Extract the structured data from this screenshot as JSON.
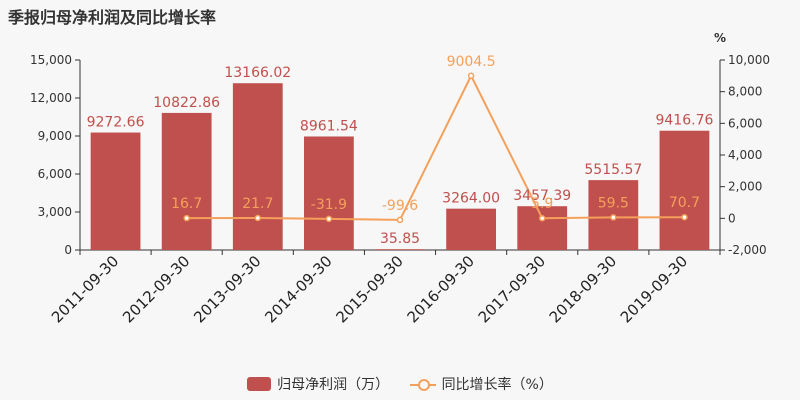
{
  "title": "季报归母净利润及同比增长率",
  "colors": {
    "bar": "#c0504d",
    "line": "#f5a05a",
    "axis": "#333333"
  },
  "legend": {
    "bar_label": "归母净利润（万）",
    "line_label": "同比增长率（%）"
  },
  "chart_data": {
    "type": "bar",
    "categories": [
      "2011-09-30",
      "2012-09-30",
      "2013-09-30",
      "2014-09-30",
      "2015-09-30",
      "2016-09-30",
      "2017-09-30",
      "2018-09-30",
      "2019-09-30"
    ],
    "series": [
      {
        "name": "归母净利润（万）",
        "type": "bar",
        "axis": "left",
        "values": [
          9272.66,
          10822.86,
          13166.02,
          8961.54,
          35.85,
          3264.0,
          3457.39,
          5515.57,
          9416.76
        ],
        "labels": [
          "9272.66",
          "10822.86",
          "13166.02",
          "8961.54",
          "35.85",
          "3264.00",
          "3457.39",
          "5515.57",
          "9416.76"
        ]
      },
      {
        "name": "同比增长率（%）",
        "type": "line",
        "axis": "right",
        "values": [
          null,
          16.7,
          21.7,
          -31.9,
          -99.6,
          9004.5,
          5.9,
          59.5,
          70.7
        ],
        "labels": [
          "",
          "16.7",
          "21.7",
          "-31.9",
          "-99.6",
          "9004.5",
          "5.9",
          "59.5",
          "70.7"
        ]
      }
    ],
    "y_left": {
      "min": 0,
      "max": 15000,
      "ticks": [
        0,
        3000,
        6000,
        9000,
        12000,
        15000
      ],
      "tick_labels": [
        "0",
        "3,000",
        "6,000",
        "9,000",
        "12,000",
        "15,000"
      ]
    },
    "y_right": {
      "min": -2000,
      "max": 10000,
      "unit": "%",
      "ticks": [
        -2000,
        0,
        2000,
        4000,
        6000,
        8000,
        10000
      ],
      "tick_labels": [
        "-2,000",
        "0",
        "2,000",
        "4,000",
        "6,000",
        "8,000",
        "10,000"
      ]
    },
    "grid": false,
    "legend_position": "bottom"
  }
}
